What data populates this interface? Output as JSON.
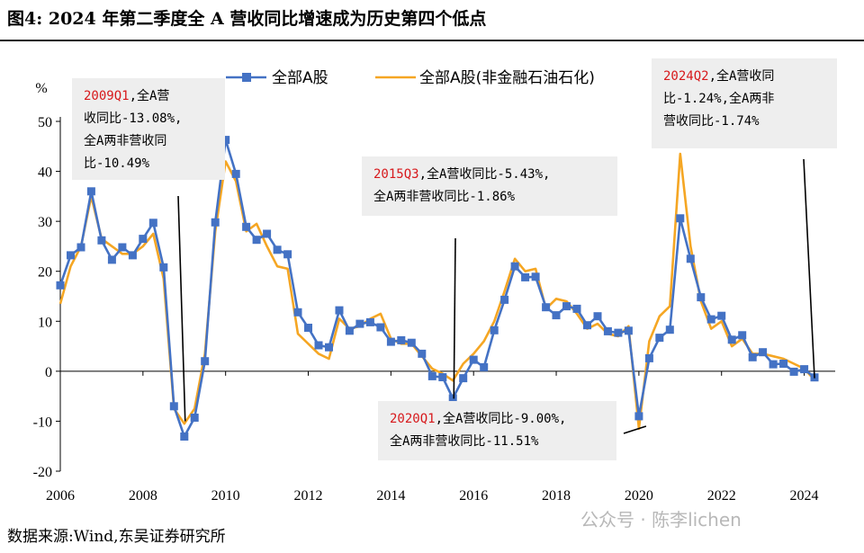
{
  "title": "图4:  2024 年第二季度全 A 营收同比增速成为历史第四个低点",
  "source": "数据来源:Wind,东吴证券研究所",
  "watermark": "公众号 · 陈李lichen",
  "colors": {
    "series1": "#4472C4",
    "series2": "#F5A623",
    "annotation_bg": "#eeeeee"
  },
  "chart_data": {
    "type": "line",
    "ylabel": "%",
    "xlabel": "",
    "ylim": [
      -20,
      50
    ],
    "yticks": [
      50,
      40,
      30,
      20,
      10,
      0,
      -10,
      -20
    ],
    "xlim": [
      2006,
      2024.75
    ],
    "xticks": [
      2006,
      2008,
      2010,
      2012,
      2014,
      2016,
      2018,
      2020,
      2022,
      2024
    ],
    "legend_position": "top-center",
    "grid": false,
    "series": [
      {
        "name": "全部A股",
        "marker": "square",
        "points": [
          [
            2006.0,
            17.2
          ],
          [
            2006.25,
            23.2
          ],
          [
            2006.5,
            24.8
          ],
          [
            2006.75,
            36.0
          ],
          [
            2007.0,
            26.2
          ],
          [
            2007.25,
            22.3
          ],
          [
            2007.5,
            24.8
          ],
          [
            2007.75,
            23.2
          ],
          [
            2008.0,
            26.5
          ],
          [
            2008.25,
            29.7
          ],
          [
            2008.5,
            20.8
          ],
          [
            2008.75,
            -7.0
          ],
          [
            2009.0,
            -13.08
          ],
          [
            2009.25,
            -9.3
          ],
          [
            2009.5,
            2.0
          ],
          [
            2009.75,
            29.8
          ],
          [
            2010.0,
            46.3
          ],
          [
            2010.25,
            39.5
          ],
          [
            2010.5,
            28.9
          ],
          [
            2010.75,
            26.3
          ],
          [
            2011.0,
            27.5
          ],
          [
            2011.25,
            24.3
          ],
          [
            2011.5,
            23.4
          ],
          [
            2011.75,
            11.8
          ],
          [
            2012.0,
            8.7
          ],
          [
            2012.25,
            5.2
          ],
          [
            2012.5,
            4.8
          ],
          [
            2012.75,
            12.2
          ],
          [
            2013.0,
            8.1
          ],
          [
            2013.25,
            9.5
          ],
          [
            2013.5,
            9.8
          ],
          [
            2013.75,
            8.8
          ],
          [
            2014.0,
            5.9
          ],
          [
            2014.25,
            6.2
          ],
          [
            2014.5,
            5.7
          ],
          [
            2014.75,
            3.5
          ],
          [
            2015.0,
            -1.0
          ],
          [
            2015.25,
            -1.2
          ],
          [
            2015.5,
            -5.43
          ],
          [
            2015.75,
            -1.4
          ],
          [
            2016.0,
            2.3
          ],
          [
            2016.25,
            0.8
          ],
          [
            2016.5,
            8.2
          ],
          [
            2016.75,
            14.3
          ],
          [
            2017.0,
            21.0
          ],
          [
            2017.25,
            18.8
          ],
          [
            2017.5,
            18.9
          ],
          [
            2017.75,
            12.8
          ],
          [
            2018.0,
            11.2
          ],
          [
            2018.25,
            13.0
          ],
          [
            2018.5,
            12.5
          ],
          [
            2018.75,
            9.2
          ],
          [
            2019.0,
            11.0
          ],
          [
            2019.25,
            8.0
          ],
          [
            2019.5,
            7.7
          ],
          [
            2019.75,
            8.1
          ],
          [
            2020.0,
            -9.0
          ],
          [
            2020.25,
            2.6
          ],
          [
            2020.5,
            6.7
          ],
          [
            2020.75,
            8.3
          ],
          [
            2021.0,
            30.6
          ],
          [
            2021.25,
            22.5
          ],
          [
            2021.5,
            14.8
          ],
          [
            2021.75,
            10.4
          ],
          [
            2022.0,
            11.1
          ],
          [
            2022.25,
            6.3
          ],
          [
            2022.5,
            7.2
          ],
          [
            2022.75,
            2.8
          ],
          [
            2023.0,
            3.8
          ],
          [
            2023.25,
            1.4
          ],
          [
            2023.5,
            1.5
          ],
          [
            2023.75,
            -0.1
          ],
          [
            2024.0,
            0.4
          ],
          [
            2024.25,
            -1.24
          ]
        ]
      },
      {
        "name": "全部A股(非金融石油石化)",
        "marker": "none",
        "points": [
          [
            2006.0,
            13.5
          ],
          [
            2006.25,
            21.0
          ],
          [
            2006.5,
            25.0
          ],
          [
            2006.75,
            35.0
          ],
          [
            2007.0,
            26.5
          ],
          [
            2007.25,
            25.0
          ],
          [
            2007.5,
            23.5
          ],
          [
            2007.75,
            23.5
          ],
          [
            2008.0,
            25.0
          ],
          [
            2008.25,
            27.5
          ],
          [
            2008.5,
            18.5
          ],
          [
            2008.75,
            -7.5
          ],
          [
            2009.0,
            -10.49
          ],
          [
            2009.25,
            -7.5
          ],
          [
            2009.5,
            3.5
          ],
          [
            2009.75,
            28.0
          ],
          [
            2010.0,
            42.0
          ],
          [
            2010.25,
            38.0
          ],
          [
            2010.5,
            28.0
          ],
          [
            2010.75,
            29.5
          ],
          [
            2011.0,
            25.0
          ],
          [
            2011.25,
            21.0
          ],
          [
            2011.5,
            20.5
          ],
          [
            2011.75,
            7.5
          ],
          [
            2012.0,
            5.5
          ],
          [
            2012.25,
            3.5
          ],
          [
            2012.5,
            2.5
          ],
          [
            2012.75,
            10.5
          ],
          [
            2013.0,
            8.5
          ],
          [
            2013.25,
            9.0
          ],
          [
            2013.5,
            10.5
          ],
          [
            2013.75,
            11.5
          ],
          [
            2014.0,
            6.5
          ],
          [
            2014.25,
            5.5
          ],
          [
            2014.5,
            5.5
          ],
          [
            2014.75,
            3.0
          ],
          [
            2015.0,
            0.5
          ],
          [
            2015.25,
            -0.5
          ],
          [
            2015.5,
            -1.86
          ],
          [
            2015.75,
            1.5
          ],
          [
            2016.0,
            3.5
          ],
          [
            2016.25,
            6.0
          ],
          [
            2016.5,
            10.0
          ],
          [
            2016.75,
            16.0
          ],
          [
            2017.0,
            22.5
          ],
          [
            2017.25,
            20.0
          ],
          [
            2017.5,
            20.5
          ],
          [
            2017.75,
            12.5
          ],
          [
            2018.0,
            14.5
          ],
          [
            2018.25,
            14.0
          ],
          [
            2018.5,
            11.5
          ],
          [
            2018.75,
            8.5
          ],
          [
            2019.0,
            9.5
          ],
          [
            2019.25,
            7.5
          ],
          [
            2019.5,
            7.0
          ],
          [
            2019.75,
            9.0
          ],
          [
            2020.0,
            -11.51
          ],
          [
            2020.25,
            6.0
          ],
          [
            2020.5,
            11.0
          ],
          [
            2020.75,
            13.0
          ],
          [
            2021.0,
            43.5
          ],
          [
            2021.25,
            25.0
          ],
          [
            2021.5,
            14.0
          ],
          [
            2021.75,
            8.5
          ],
          [
            2022.0,
            10.0
          ],
          [
            2022.25,
            5.0
          ],
          [
            2022.5,
            6.5
          ],
          [
            2022.75,
            3.5
          ],
          [
            2023.0,
            3.5
          ],
          [
            2023.25,
            3.0
          ],
          [
            2023.5,
            2.5
          ],
          [
            2023.75,
            1.5
          ],
          [
            2024.0,
            0.5
          ],
          [
            2024.25,
            -1.74
          ]
        ]
      }
    ],
    "annotations": [
      {
        "red": "2009Q1",
        "lines": [
          "2009Q1,全A营",
          "收同比-13.08%,",
          "全A两非营收同",
          "比-10.49%"
        ],
        "pointer_x": 2009.0
      },
      {
        "red": "2015Q3",
        "lines": [
          "2015Q3,全A营收同比-5.43%,",
          "全A两非营收同比-1.86%"
        ],
        "pointer_x": 2015.5
      },
      {
        "red": "2020Q1",
        "lines": [
          "2020Q1,全A营收同比-9.00%,",
          "全A两非营收同比-11.51%"
        ],
        "pointer_x": 2020.0
      },
      {
        "red": "2024Q2",
        "lines": [
          "2024Q2,全A营收同",
          "比-1.24%,全A两非",
          "营收同比-1.74%"
        ],
        "pointer_x": 2024.25
      }
    ]
  }
}
